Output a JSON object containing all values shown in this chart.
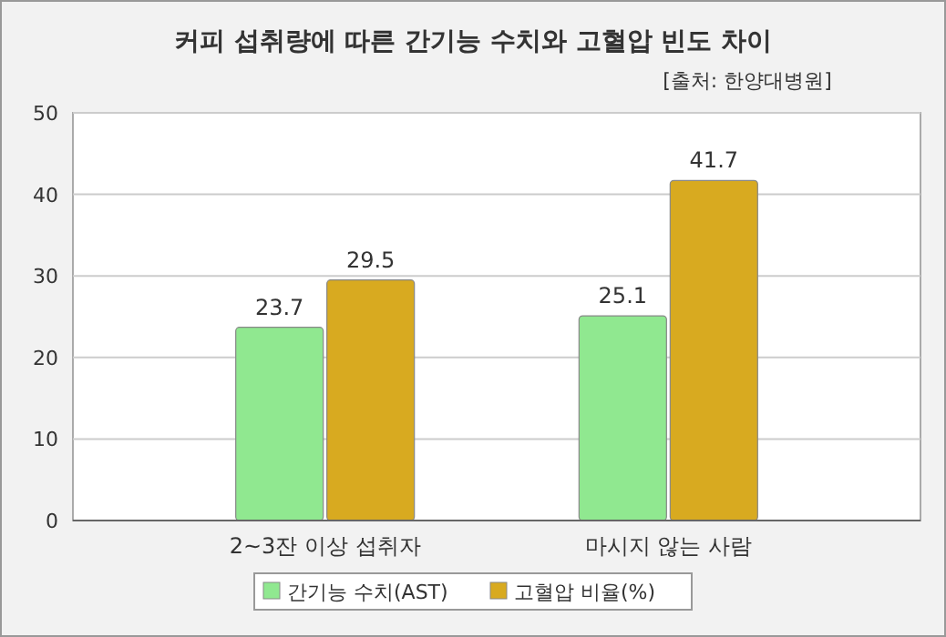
{
  "chart_data": {
    "type": "bar",
    "title": "커피 섭취량에 따른 간기능 수치와 고혈압 빈도 차이",
    "subtitle": "[출처: 한양대병원]",
    "categories": [
      "2~3잔 이상 섭취자",
      "마시지 않는 사람"
    ],
    "series": [
      {
        "name": "간기능 수치(AST)",
        "color": "#90e890",
        "values": [
          23.7,
          25.1
        ]
      },
      {
        "name": "고혈압 비율(%)",
        "color": "#d8aa20",
        "values": [
          29.5,
          41.7
        ]
      }
    ],
    "ylim": [
      0,
      50
    ],
    "yticks": [
      0,
      10,
      20,
      30,
      40,
      50
    ],
    "grid": "y",
    "legend": "bottom",
    "data_labels": true
  }
}
